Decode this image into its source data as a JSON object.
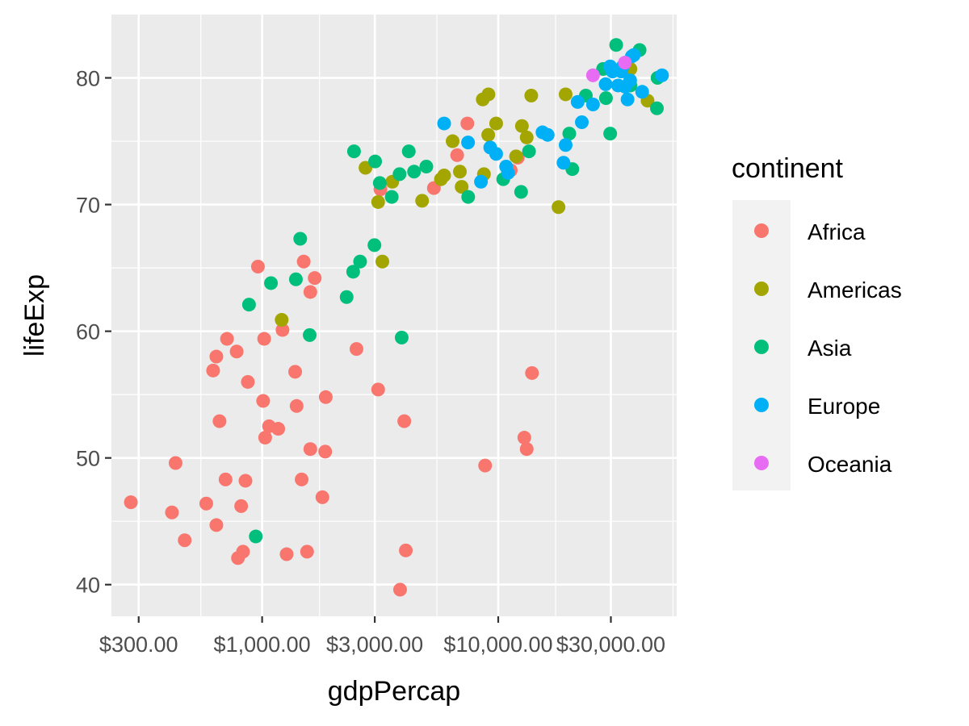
{
  "chart_data": {
    "type": "scatter",
    "xlabel": "gdpPercap",
    "ylabel": "lifeExp",
    "x_scale": "log10",
    "xlim": [
      230,
      57000
    ],
    "ylim": [
      37.5,
      85
    ],
    "x_ticks": [
      300,
      1000,
      3000,
      10000,
      30000
    ],
    "x_tick_labels": [
      "$300.00",
      "$1,000.00",
      "$3,000.00",
      "$10,000.00",
      "$30,000.00"
    ],
    "x_minor_ticks": [
      550,
      1750,
      5500,
      17500,
      55000
    ],
    "y_ticks": [
      40,
      50,
      60,
      70,
      80
    ],
    "y_tick_labels": [
      "40",
      "50",
      "60",
      "70",
      "80"
    ],
    "y_minor_ticks": [
      45,
      55,
      65,
      75
    ],
    "grid": true,
    "legend": {
      "title": "continent",
      "position": "right",
      "entries": [
        {
          "name": "Africa",
          "color": "#F8766D"
        },
        {
          "name": "Americas",
          "color": "#A3A500"
        },
        {
          "name": "Asia",
          "color": "#00BF7D"
        },
        {
          "name": "Europe",
          "color": "#00B0F6"
        },
        {
          "name": "Oceania",
          "color": "#E76BF3"
        }
      ]
    },
    "series": [
      {
        "name": "Africa",
        "color": "#F8766D",
        "points": [
          [
            278,
            46.5
          ],
          [
            415,
            45.7
          ],
          [
            470,
            43.5
          ],
          [
            430,
            49.6
          ],
          [
            580,
            46.4
          ],
          [
            640,
            44.7
          ],
          [
            700,
            48.3
          ],
          [
            620,
            56.9
          ],
          [
            640,
            58.0
          ],
          [
            660,
            52.9
          ],
          [
            710,
            59.4
          ],
          [
            780,
            58.4
          ],
          [
            815,
            46.2
          ],
          [
            850,
            48.2
          ],
          [
            870,
            56.0
          ],
          [
            830,
            42.6
          ],
          [
            790,
            42.1
          ],
          [
            960,
            65.1
          ],
          [
            1010,
            54.5
          ],
          [
            1020,
            59.4
          ],
          [
            1030,
            51.6
          ],
          [
            1070,
            52.5
          ],
          [
            1170,
            52.3
          ],
          [
            1220,
            60.1
          ],
          [
            1380,
            56.8
          ],
          [
            1400,
            54.1
          ],
          [
            1270,
            42.4
          ],
          [
            1470,
            48.3
          ],
          [
            1500,
            65.5
          ],
          [
            1550,
            42.6
          ],
          [
            1600,
            50.7
          ],
          [
            1600,
            63.1
          ],
          [
            1670,
            64.2
          ],
          [
            1800,
            46.9
          ],
          [
            1860,
            54.8
          ],
          [
            1850,
            50.5
          ],
          [
            2510,
            58.6
          ],
          [
            3170,
            71.2
          ],
          [
            3100,
            55.4
          ],
          [
            4000,
            52.9
          ],
          [
            3840,
            39.6
          ],
          [
            4060,
            42.7
          ],
          [
            5340,
            71.3
          ],
          [
            6700,
            73.9
          ],
          [
            7400,
            76.4
          ],
          [
            8800,
            49.4
          ],
          [
            12100,
            73.7
          ],
          [
            12900,
            51.6
          ],
          [
            13200,
            50.7
          ],
          [
            13900,
            56.7
          ],
          [
            11300,
            72.7
          ]
        ]
      },
      {
        "name": "Americas",
        "color": "#A3A500",
        "points": [
          [
            1210,
            60.9
          ],
          [
            2740,
            72.9
          ],
          [
            3100,
            70.2
          ],
          [
            3230,
            65.5
          ],
          [
            3560,
            71.8
          ],
          [
            4760,
            70.3
          ],
          [
            5720,
            72.0
          ],
          [
            5900,
            72.3
          ],
          [
            6410,
            75.0
          ],
          [
            6880,
            72.6
          ],
          [
            7000,
            71.4
          ],
          [
            8600,
            78.3
          ],
          [
            8700,
            72.4
          ],
          [
            9090,
            78.7
          ],
          [
            9070,
            75.5
          ],
          [
            9800,
            76.4
          ],
          [
            11900,
            73.8
          ],
          [
            12600,
            76.2
          ],
          [
            13200,
            75.3
          ],
          [
            13800,
            78.6
          ],
          [
            18000,
            69.8
          ],
          [
            19300,
            78.7
          ],
          [
            36300,
            80.7
          ],
          [
            42900,
            78.2
          ]
        ]
      },
      {
        "name": "Asia",
        "color": "#00BF7D",
        "points": [
          [
            940,
            43.8
          ],
          [
            880,
            62.1
          ],
          [
            1090,
            63.8
          ],
          [
            1390,
            64.1
          ],
          [
            1450,
            67.3
          ],
          [
            1590,
            59.7
          ],
          [
            2280,
            62.7
          ],
          [
            2430,
            64.7
          ],
          [
            2600,
            65.5
          ],
          [
            2450,
            74.2
          ],
          [
            2990,
            66.8
          ],
          [
            3010,
            73.4
          ],
          [
            3150,
            71.7
          ],
          [
            3540,
            70.6
          ],
          [
            3820,
            72.4
          ],
          [
            4180,
            74.2
          ],
          [
            4400,
            72.6
          ],
          [
            4960,
            73.0
          ],
          [
            3900,
            59.5
          ],
          [
            7460,
            70.6
          ],
          [
            10500,
            72.0
          ],
          [
            12500,
            71.0
          ],
          [
            13500,
            74.2
          ],
          [
            20000,
            75.6
          ],
          [
            20600,
            72.8
          ],
          [
            23500,
            78.6
          ],
          [
            27800,
            80.7
          ],
          [
            28600,
            78.4
          ],
          [
            29800,
            75.6
          ],
          [
            31600,
            82.6
          ],
          [
            36300,
            79.4
          ],
          [
            39700,
            82.2
          ],
          [
            47300,
            80.0
          ],
          [
            47000,
            77.6
          ]
        ]
      },
      {
        "name": "Europe",
        "color": "#00B0F6",
        "points": [
          [
            5900,
            76.4
          ],
          [
            7450,
            74.9
          ],
          [
            8450,
            71.8
          ],
          [
            9250,
            74.5
          ],
          [
            9800,
            74.0
          ],
          [
            10800,
            73.0
          ],
          [
            11000,
            72.5
          ],
          [
            15400,
            75.7
          ],
          [
            16200,
            75.5
          ],
          [
            18900,
            73.3
          ],
          [
            19300,
            74.7
          ],
          [
            21700,
            78.1
          ],
          [
            22600,
            76.5
          ],
          [
            25200,
            77.9
          ],
          [
            28500,
            79.5
          ],
          [
            29800,
            80.9
          ],
          [
            30500,
            80.5
          ],
          [
            32200,
            79.4
          ],
          [
            33700,
            80.9
          ],
          [
            34500,
            79.3
          ],
          [
            35300,
            78.3
          ],
          [
            36200,
            79.8
          ],
          [
            36800,
            81.7
          ],
          [
            37500,
            81.8
          ],
          [
            40700,
            78.9
          ],
          [
            49400,
            80.2
          ],
          [
            33200,
            80.5
          ]
        ]
      },
      {
        "name": "Oceania",
        "color": "#E76BF3",
        "points": [
          [
            25200,
            80.2
          ],
          [
            34400,
            81.2
          ]
        ]
      }
    ]
  }
}
